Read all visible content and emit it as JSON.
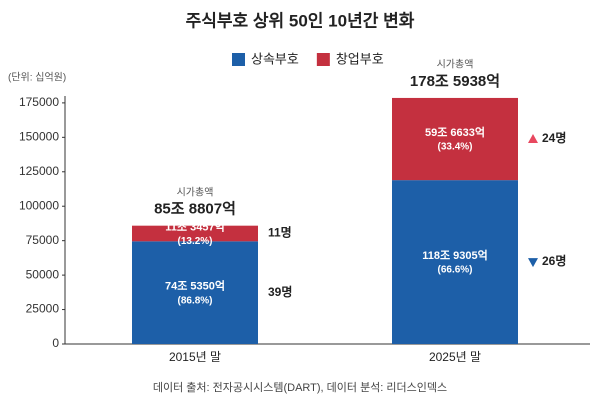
{
  "chart_data": {
    "type": "stacked_bar",
    "title": "주식부호 상위 50인 10년간 변화",
    "unit": "(단위: 십억원)",
    "source": "데이터 출처: 전자공시시스템(DART), 데이터 분석: 리더스인덱스",
    "categories": [
      "2015년 말",
      "2025년 말"
    ],
    "series": [
      {
        "name": "상속부호",
        "color": "#1d5fa8",
        "values": [
          74535,
          118930.5
        ],
        "value_labels": [
          "74조 5350억",
          "118조 9305억"
        ],
        "shares": [
          86.8,
          66.6
        ],
        "share_labels": [
          "(86.8%)",
          "(66.6%)"
        ],
        "counts": [
          39,
          26
        ],
        "count_labels": [
          "39명",
          "26명"
        ]
      },
      {
        "name": "창업부호",
        "color": "#c4303f",
        "values": [
          11345.7,
          59663.3
        ],
        "value_labels": [
          "11조 3457억",
          "59조 6633억"
        ],
        "shares": [
          13.2,
          33.4
        ],
        "share_labels": [
          "(13.2%)",
          "(33.4%)"
        ],
        "counts": [
          11,
          24
        ],
        "count_labels": [
          "11명",
          "24명"
        ]
      }
    ],
    "total_caption": "시가총액",
    "totals": [
      85880.7,
      178593.8
    ],
    "total_labels": [
      "85조 8807억",
      "178조 5938억"
    ],
    "ylim": [
      0,
      180000
    ],
    "yticks": [
      0,
      25000,
      50000,
      75000,
      100000,
      125000,
      150000,
      175000
    ],
    "grid": false
  }
}
